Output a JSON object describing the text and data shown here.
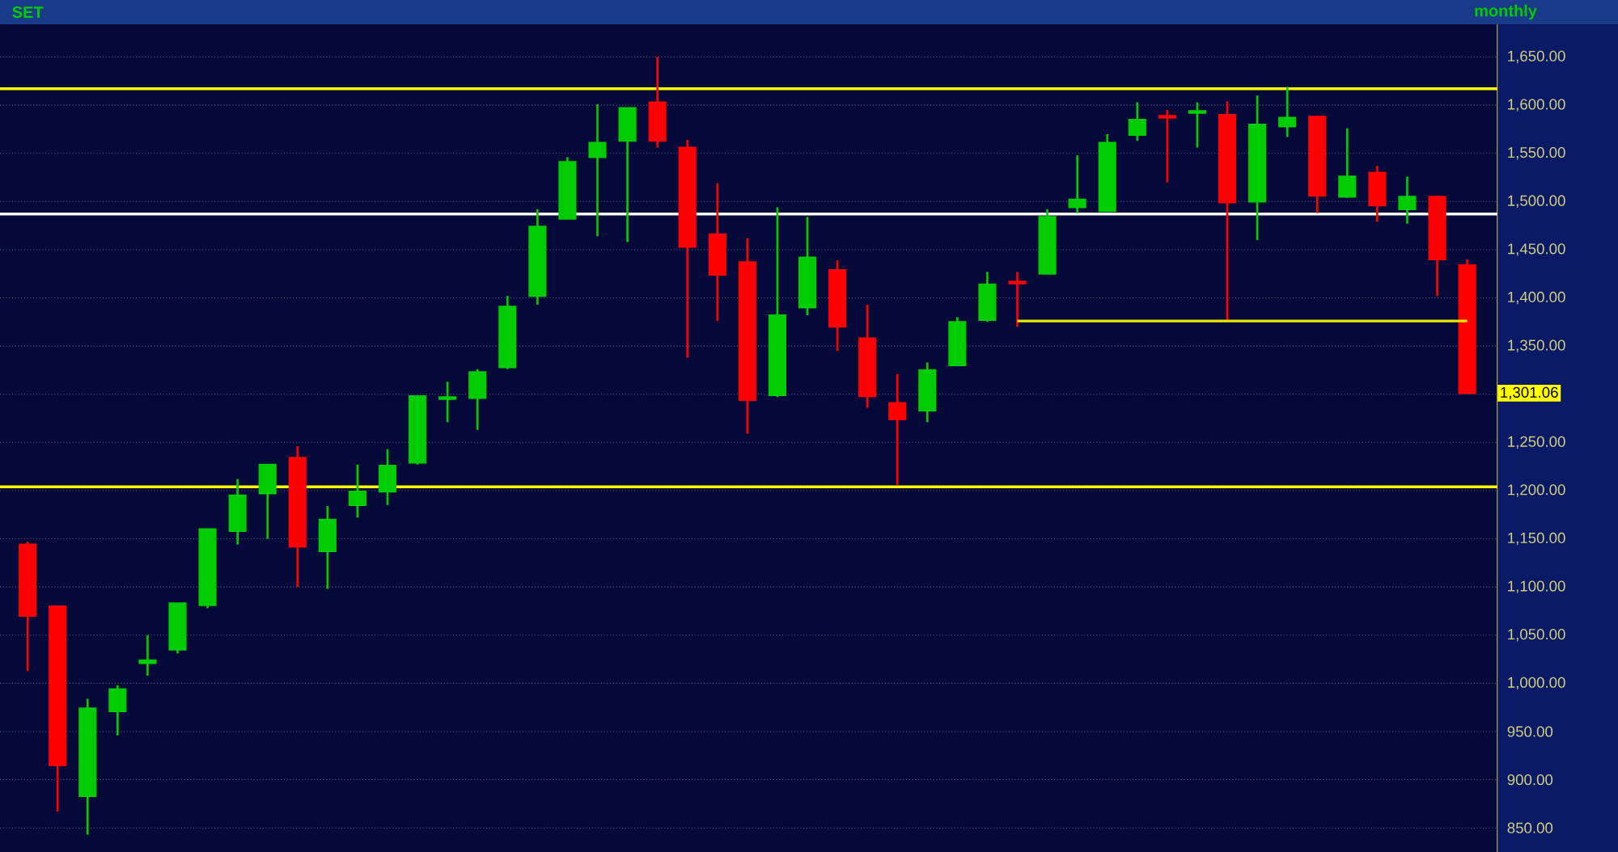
{
  "chart_data": {
    "type": "candlestick",
    "title": "SET",
    "subtitle": "monthly",
    "categories": [
      null,
      null,
      null,
      null,
      null,
      null,
      null,
      null,
      null,
      null,
      null,
      null,
      null,
      null,
      null,
      null,
      null,
      null,
      null,
      null,
      null,
      null,
      null,
      null,
      null,
      null,
      null,
      null,
      null,
      null,
      null,
      null,
      null,
      null,
      null,
      null,
      null,
      null,
      null,
      null,
      null,
      null,
      null,
      null,
      null,
      null,
      null,
      null,
      null
    ],
    "ohlc": [
      [
        1144,
        1147,
        1013,
        1070
      ],
      [
        1080,
        1080,
        867,
        915
      ],
      [
        883,
        984,
        843,
        974
      ],
      [
        971,
        998,
        946,
        994
      ],
      [
        1021,
        1050,
        1008,
        1024
      ],
      [
        1035,
        1083,
        1031,
        1083
      ],
      [
        1081,
        1160,
        1078,
        1160
      ],
      [
        1158,
        1212,
        1144,
        1195
      ],
      [
        1197,
        1227,
        1150,
        1227
      ],
      [
        1234,
        1246,
        1100,
        1142
      ],
      [
        1137,
        1184,
        1098,
        1170
      ],
      [
        1185,
        1227,
        1172,
        1199
      ],
      [
        1199,
        1243,
        1185,
        1226
      ],
      [
        1229,
        1299,
        1227,
        1298
      ],
      [
        1295,
        1313,
        1271,
        1297
      ],
      [
        1296,
        1326,
        1263,
        1323
      ],
      [
        1328,
        1402,
        1326,
        1391
      ],
      [
        1402,
        1492,
        1393,
        1474
      ],
      [
        1482,
        1546,
        1482,
        1541
      ],
      [
        1546,
        1601,
        1464,
        1561
      ],
      [
        1563,
        1597,
        1458,
        1597
      ],
      [
        1603,
        1650,
        1556,
        1563
      ],
      [
        1556,
        1564,
        1338,
        1453
      ],
      [
        1466,
        1519,
        1376,
        1424
      ],
      [
        1437,
        1462,
        1259,
        1294
      ],
      [
        1299,
        1494,
        1297,
        1382
      ],
      [
        1390,
        1484,
        1382,
        1442
      ],
      [
        1429,
        1439,
        1345,
        1370
      ],
      [
        1358,
        1393,
        1286,
        1298
      ],
      [
        1291,
        1321,
        1206,
        1274
      ],
      [
        1283,
        1333,
        1271,
        1325
      ],
      [
        1330,
        1380,
        1330,
        1375
      ],
      [
        1377,
        1427,
        1375,
        1414
      ],
      [
        1417,
        1427,
        1370,
        1415
      ],
      [
        1425,
        1492,
        1425,
        1484
      ],
      [
        1494,
        1548,
        1488,
        1502
      ],
      [
        1490,
        1570,
        1490,
        1561
      ],
      [
        1569,
        1603,
        1563,
        1585
      ],
      [
        1589,
        1595,
        1520,
        1587
      ],
      [
        1592,
        1603,
        1556,
        1594
      ],
      [
        1590,
        1604,
        1376,
        1499
      ],
      [
        1500,
        1610,
        1460,
        1580
      ],
      [
        1578,
        1619,
        1567,
        1587
      ],
      [
        1588,
        1589,
        1488,
        1506
      ],
      [
        1505,
        1576,
        1504,
        1526
      ],
      [
        1530,
        1537,
        1479,
        1496
      ],
      [
        1492,
        1526,
        1477,
        1505
      ],
      [
        1505,
        1506,
        1402,
        1440
      ],
      [
        1434,
        1440,
        1301.06,
        1301.06
      ]
    ],
    "colors": [
      "#ff0000",
      "#ff0000",
      "#00cc00",
      "#00cc00",
      "#00cc00",
      "#00cc00",
      "#00cc00",
      "#00cc00",
      "#00cc00",
      "#ff0000",
      "#00cc00",
      "#00cc00",
      "#00cc00",
      "#00cc00",
      "#00cc00",
      "#00cc00",
      "#00cc00",
      "#00cc00",
      "#00cc00",
      "#00cc00",
      "#00cc00",
      "#ff0000",
      "#ff0000",
      "#ff0000",
      "#ff0000",
      "#00cc00",
      "#00cc00",
      "#ff0000",
      "#ff0000",
      "#ff0000",
      "#00cc00",
      "#00cc00",
      "#00cc00",
      "#ff0000",
      "#00cc00",
      "#00cc00",
      "#00cc00",
      "#00cc00",
      "#ff0000",
      "#00cc00",
      "#ff0000",
      "#00cc00",
      "#00cc00",
      "#ff0000",
      "#00cc00",
      "#ff0000",
      "#00cc00",
      "#ff0000",
      "#ff0000"
    ],
    "series": [
      {
        "type": "line",
        "color": "#e8e800",
        "values": [
          null,
          null,
          null,
          null,
          null,
          null,
          null,
          null,
          null,
          null,
          null,
          null,
          null,
          null,
          null,
          null,
          null,
          null,
          null,
          null,
          null,
          null,
          null,
          null,
          null,
          null,
          null,
          null,
          null,
          null,
          null,
          null,
          null,
          1376,
          1376,
          1376,
          1376,
          1376,
          1376,
          1376,
          1376,
          1376,
          1376,
          1376,
          1376,
          1376,
          1376,
          1376,
          1376
        ]
      }
    ],
    "ref_lines": [
      {
        "axis": "y",
        "value": 1617,
        "color": "#ffff00"
      },
      {
        "axis": "y",
        "value": 1487,
        "color": "#ffffff"
      },
      {
        "axis": "y",
        "value": 1204,
        "color": "#ffff00"
      }
    ],
    "annotations": [
      "1,301.06"
    ],
    "ylim": [
      825,
      1684
    ],
    "yticks": [
      {
        "value": 850,
        "label": "850.00"
      },
      {
        "value": 900,
        "label": "900.00"
      },
      {
        "value": 950,
        "label": "950.00"
      },
      {
        "value": 1000,
        "label": "1,000.00"
      },
      {
        "value": 1050,
        "label": "1,050.00"
      },
      {
        "value": 1100,
        "label": "1,100.00"
      },
      {
        "value": 1150,
        "label": "1,150.00"
      },
      {
        "value": 1200,
        "label": "1,200.00"
      },
      {
        "value": 1250,
        "label": "1,250.00"
      },
      {
        "value": 1300,
        "label": null
      },
      {
        "value": 1350,
        "label": "1,350.00"
      },
      {
        "value": 1400,
        "label": "1,400.00"
      },
      {
        "value": 1450,
        "label": "1,450.00"
      },
      {
        "value": 1500,
        "label": "1,500.00"
      },
      {
        "value": 1550,
        "label": "1,550.00"
      },
      {
        "value": 1600,
        "label": "1,600.00"
      },
      {
        "value": 1650,
        "label": "1,650.00"
      }
    ],
    "grid": true,
    "tick_labels": "y"
  }
}
